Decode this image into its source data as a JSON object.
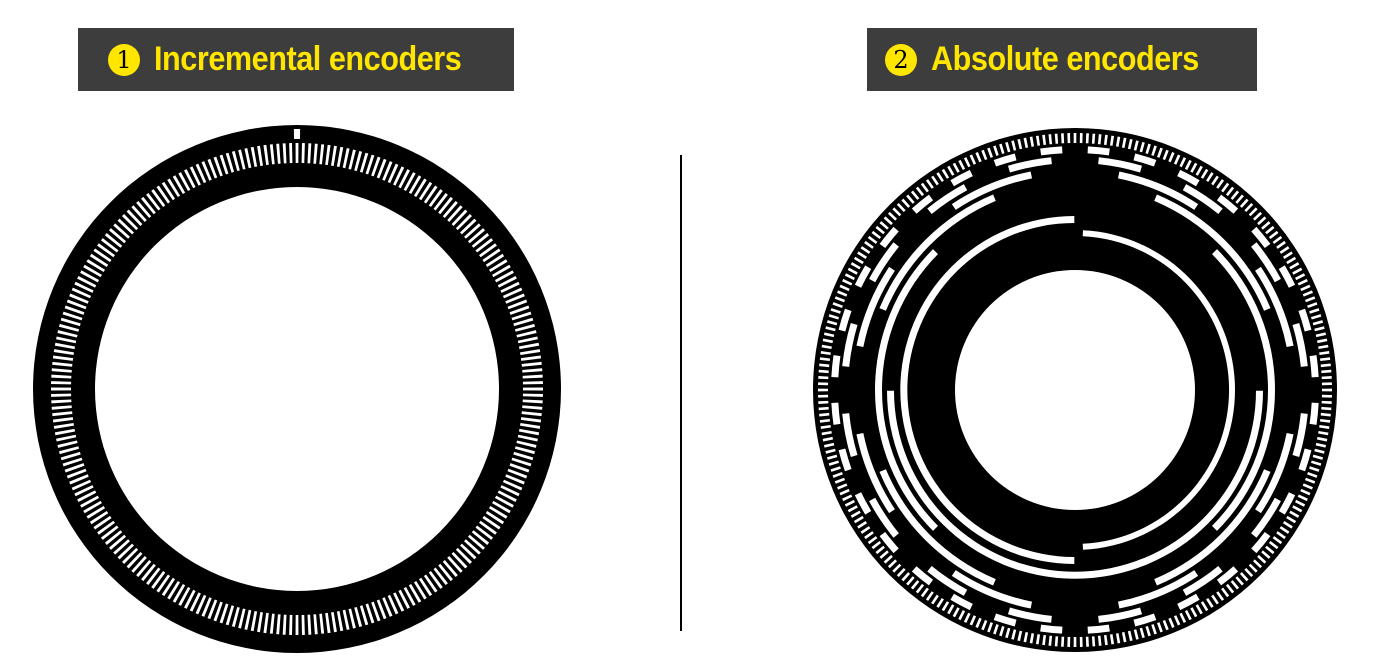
{
  "panels": [
    {
      "number": "1",
      "title": "Incremental encoders"
    },
    {
      "number": "2",
      "title": "Absolute encoders"
    }
  ],
  "colors": {
    "banner_background": "#3d3d3d",
    "banner_text": "#ffe600",
    "badge": "#ffe600",
    "disc": "#000000",
    "slot": "#ffffff"
  },
  "incremental_disc": {
    "slot_count": 240,
    "index_mark": true
  },
  "absolute_disc": {
    "code_tracks": 8,
    "outer_slot_count": 256
  }
}
